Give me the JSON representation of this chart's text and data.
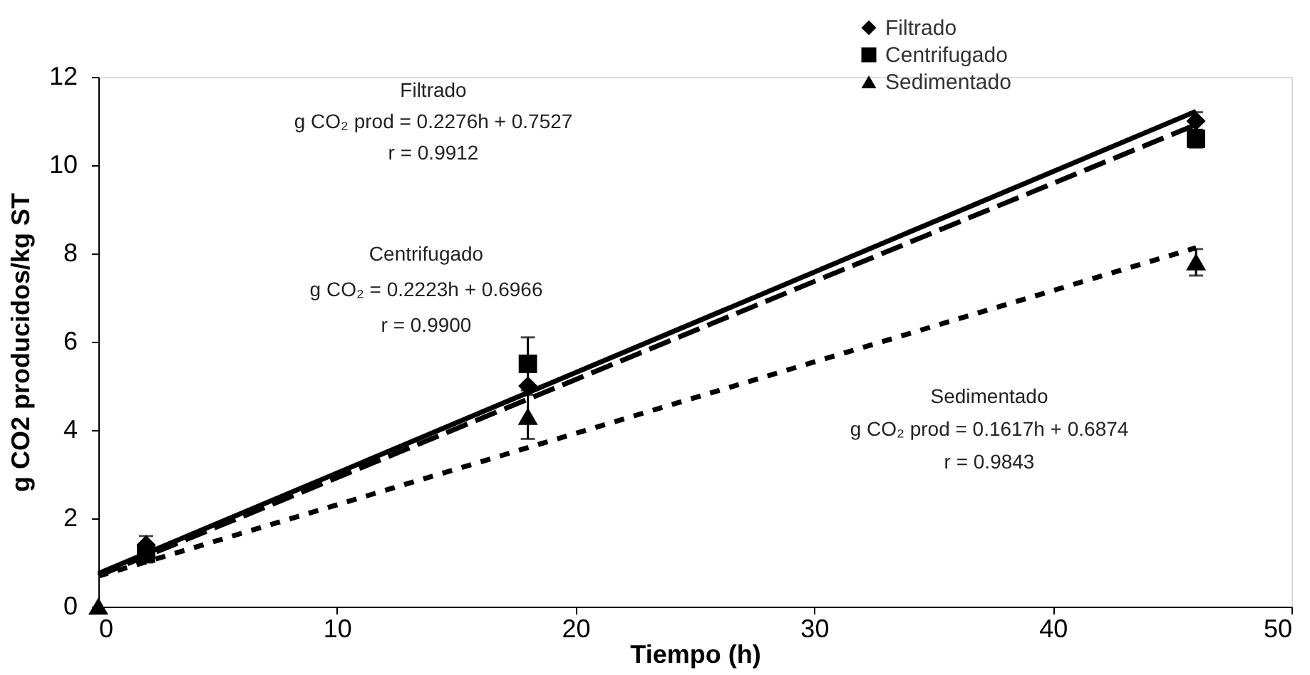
{
  "chart_data": {
    "type": "scatter",
    "xlabel": "Tiempo (h)",
    "ylabel": "g CO2 producidos/kg ST",
    "xlim": [
      0,
      50
    ],
    "xticks": [
      0,
      10,
      20,
      30,
      40,
      50
    ],
    "ylim": [
      0,
      12
    ],
    "yticks": [
      0,
      2,
      4,
      6,
      8,
      10,
      12
    ],
    "grid": false,
    "legend": "top right",
    "series": [
      {
        "name": "Filtrado",
        "color": "#000000",
        "marker": "diamond",
        "x": [
          2,
          18,
          46
        ],
        "values": [
          1.4,
          5.0,
          11.0
        ],
        "errors": [
          0.2,
          null,
          0.2
        ]
      },
      {
        "name": "Centrifugado",
        "color": "#000000",
        "marker": "square",
        "x": [
          2,
          18,
          46
        ],
        "values": [
          1.2,
          5.5,
          10.6
        ],
        "errors": [
          0.2,
          0.6,
          0.2
        ]
      },
      {
        "name": "Sedimentado",
        "color": "#000000",
        "marker": "triangle",
        "x": [
          0,
          18,
          46
        ],
        "values": [
          0,
          4.3,
          7.8
        ],
        "errors": [
          null,
          0.5,
          0.3
        ]
      },
      {
        "type": "line",
        "color": "#000000",
        "line_style": "solid",
        "x": [
          0,
          46
        ],
        "values": [
          0.75,
          11.22
        ]
      },
      {
        "type": "line",
        "color": "#000000",
        "line_style": "dashed",
        "x": [
          0,
          46
        ],
        "values": [
          0.7,
          10.92
        ]
      },
      {
        "type": "line",
        "color": "#000000",
        "line_style": "dotted",
        "x": [
          0,
          46
        ],
        "values": [
          0.69,
          8.13
        ]
      }
    ],
    "annotations": [
      "Filtrado",
      "g CO₂ prod = 0.2276h + 0.7527",
      "r = 0.9912",
      "Centrifugado",
      "g CO₂ = 0.2223h + 0.6966",
      "r = 0.9900",
      "Sedimentado",
      "g CO₂ prod = 0.1617h + 0.6874",
      "r = 0.9843"
    ]
  }
}
